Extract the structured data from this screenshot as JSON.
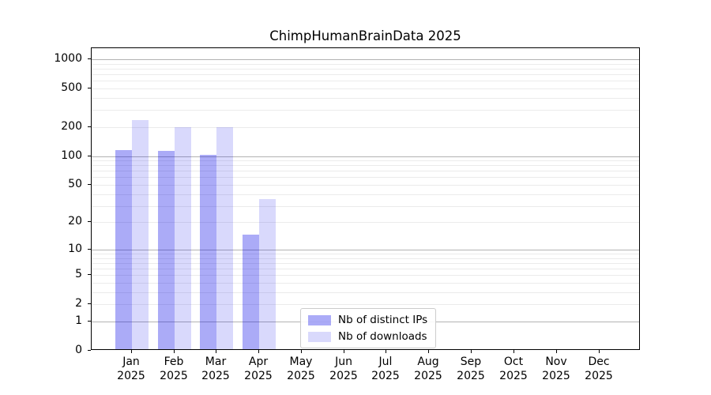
{
  "window": {
    "background": "#ffffff"
  },
  "chart_data": {
    "type": "bar",
    "title": "ChimpHumanBrainData 2025",
    "categories": [
      "Jan 2025",
      "Feb 2025",
      "Mar 2025",
      "Apr 2025",
      "May 2025",
      "Jun 2025",
      "Jul 2025",
      "Aug 2025",
      "Sep 2025",
      "Oct 2025",
      "Nov 2025",
      "Dec 2025"
    ],
    "series": [
      {
        "name": "Nb of distinct IPs",
        "color": "rgba(0,0,232,0.33)",
        "values": [
          112,
          109,
          100,
          14,
          0,
          0,
          0,
          0,
          0,
          0,
          0,
          0
        ]
      },
      {
        "name": "Nb of downloads",
        "color": "rgba(0,0,232,0.15)",
        "values": [
          226,
          193,
          192,
          34,
          0,
          0,
          0,
          0,
          0,
          0,
          0,
          0
        ]
      }
    ],
    "xlabel": "",
    "ylabel": "",
    "yscale": "log1p",
    "ylim": [
      0,
      1300
    ],
    "yticks": [
      0,
      1,
      2,
      5,
      10,
      20,
      50,
      100,
      200,
      500,
      1000
    ],
    "major_gridlines": [
      1,
      10,
      100,
      1000
    ],
    "minor_gridlines": [
      2,
      3,
      4,
      5,
      6,
      7,
      8,
      9,
      20,
      30,
      40,
      50,
      60,
      70,
      80,
      90,
      200,
      300,
      400,
      500,
      600,
      700,
      800,
      900
    ],
    "grid": true,
    "legend_position": "lower center",
    "colors": {
      "major_grid": "#b3b3b3",
      "minor_grid": "#ebebeb",
      "axis": "#000000",
      "text": "#000000",
      "background": "#ffffff"
    }
  }
}
